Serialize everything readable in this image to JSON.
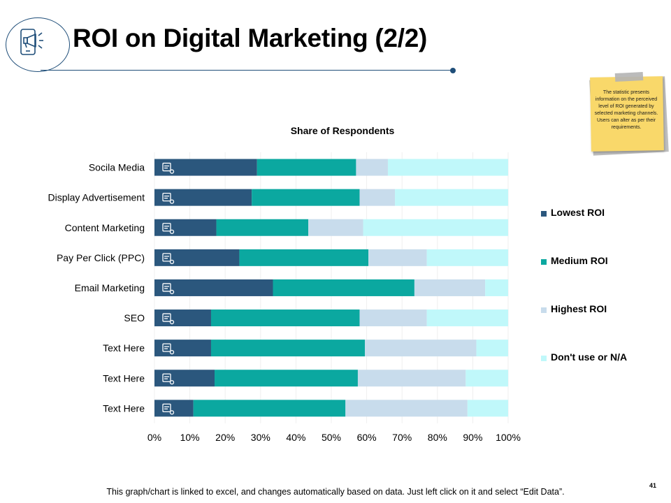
{
  "slide": {
    "title": "ROI on Digital Marketing (2/2)",
    "note": "The statistic presents information on the perceived level of ROI generated by selected marketing channels. Users can alter as per their requirements.",
    "footer": "This graph/chart is linked to excel, and changes automatically based on data. Just left click on it and select “Edit Data”.",
    "page_number": "41"
  },
  "colors": {
    "accent": "#1f4e79",
    "note_bg": "#f9d86a"
  },
  "chart_data": {
    "type": "bar",
    "orientation": "horizontal",
    "stacked": "percent",
    "title": "Share of Respondents",
    "xlabel": "",
    "ylabel": "",
    "xlim": [
      0,
      100
    ],
    "x_ticks": [
      "0%",
      "10%",
      "20%",
      "30%",
      "40%",
      "50%",
      "60%",
      "70%",
      "80%",
      "90%",
      "100%"
    ],
    "legend_position": "right",
    "categories": [
      "Socila Media",
      "Display Advertisement",
      "Content Marketing",
      "Pay Per Click (PPC)",
      "Email Marketing",
      "SEO",
      "Text Here",
      "Text Here",
      "Text Here"
    ],
    "category_icons": [
      "social-icon",
      "display-icon",
      "content-icon",
      "ppc-icon",
      "email-icon",
      "seo-icon",
      "chart-icon",
      "document-icon",
      "settings-icon"
    ],
    "series": [
      {
        "name": "Lowest ROI",
        "color": "#2b577d",
        "values": [
          29,
          27.5,
          17.5,
          24,
          33.5,
          16,
          16,
          17,
          11
        ]
      },
      {
        "name": "Medium ROI",
        "color": "#0ba8a0",
        "values": [
          28,
          30.5,
          26,
          36.5,
          40,
          42,
          43.5,
          40.5,
          43
        ]
      },
      {
        "name": "Highest ROI",
        "color": "#c8dcec",
        "values": [
          9,
          10,
          15.5,
          16.5,
          20,
          19,
          31.5,
          30.5,
          34.5
        ]
      },
      {
        "name": "Don't use or N/A",
        "color": "#c0f8fa",
        "values": [
          34,
          32,
          41,
          23,
          6.5,
          23,
          9,
          12,
          11.5
        ]
      }
    ]
  }
}
